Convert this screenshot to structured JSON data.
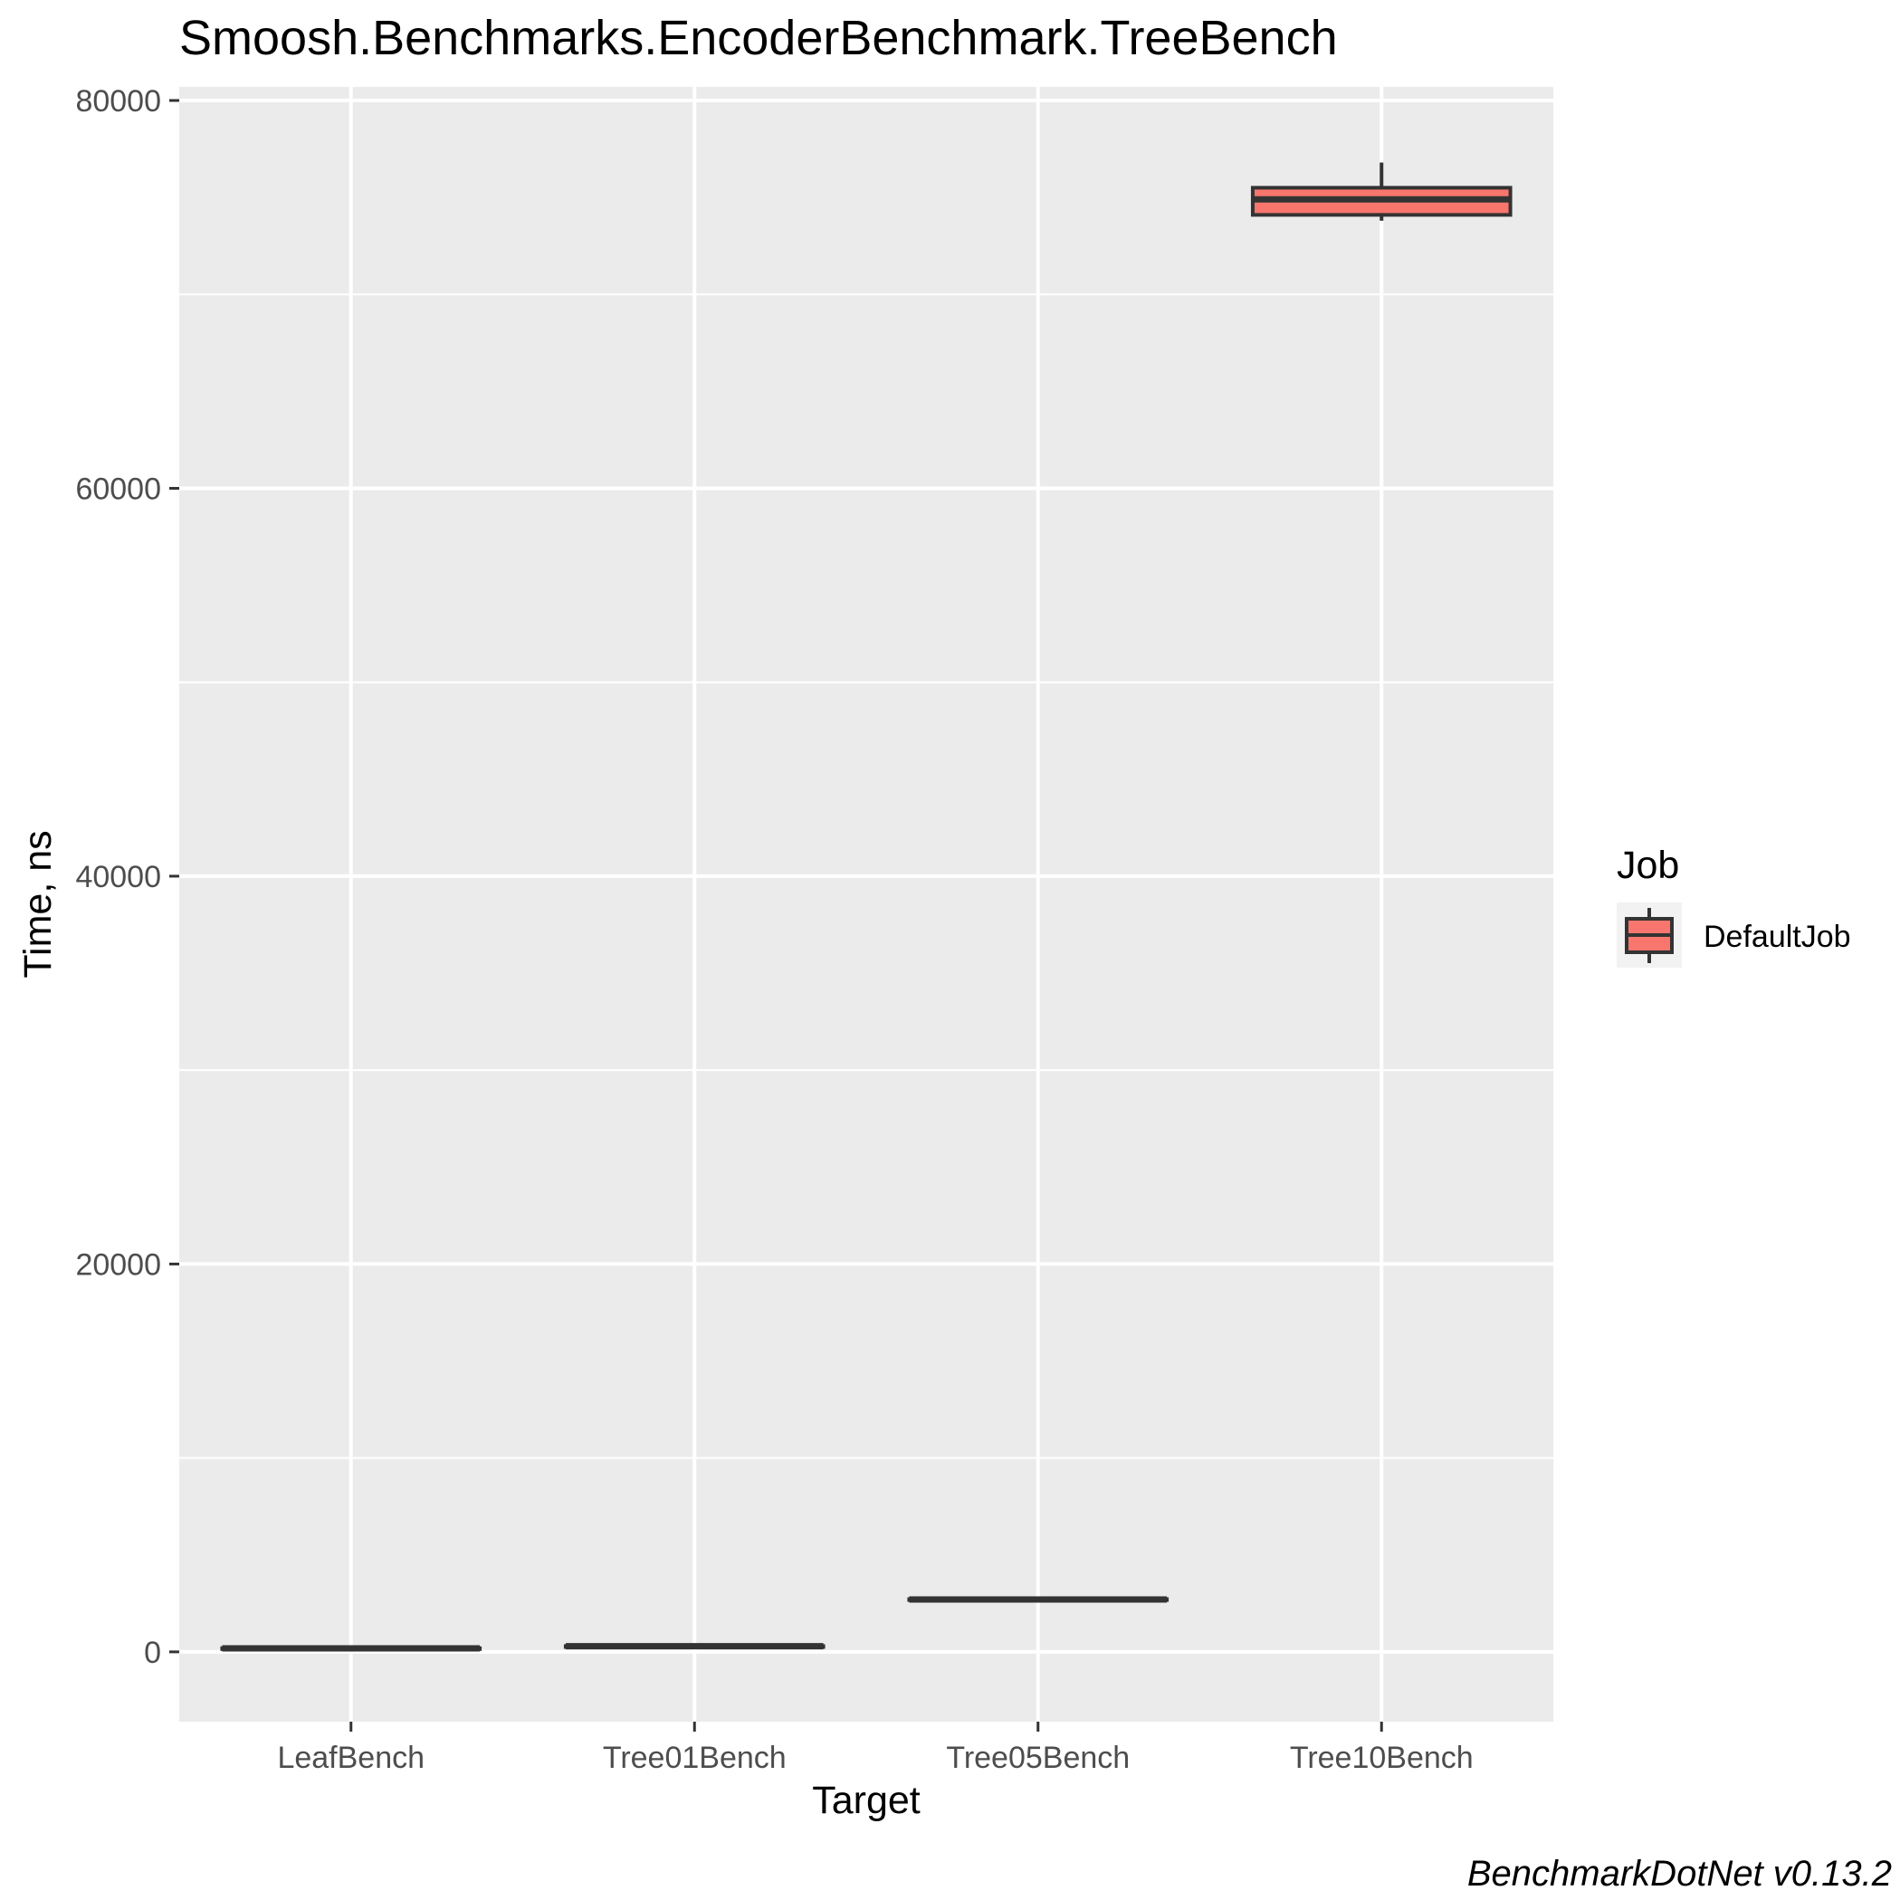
{
  "chart_data": {
    "type": "box",
    "title": "Smoosh.Benchmarks.EncoderBenchmark.TreeBench",
    "xlabel": "Target",
    "ylabel": "Time, ns",
    "categories": [
      "LeafBench",
      "Tree01Bench",
      "Tree05Bench",
      "Tree10Bench"
    ],
    "y_ticks": [
      0,
      20000,
      40000,
      60000,
      80000
    ],
    "y_tick_labels": [
      "0",
      "20000",
      "40000",
      "60000",
      "80000"
    ],
    "ylim": [
      -3600,
      80700
    ],
    "grid": true,
    "series": [
      {
        "name": "DefaultJob",
        "color": "#F8766D",
        "boxes": [
          {
            "category": "LeafBench",
            "min": 150,
            "q1": 170,
            "median": 180,
            "q3": 190,
            "max": 210
          },
          {
            "category": "Tree01Bench",
            "min": 260,
            "q1": 280,
            "median": 290,
            "q3": 300,
            "max": 320
          },
          {
            "category": "Tree05Bench",
            "min": 2650,
            "q1": 2680,
            "median": 2700,
            "q3": 2720,
            "max": 2750
          },
          {
            "category": "Tree10Bench",
            "min": 73800,
            "q1": 74100,
            "median": 74900,
            "q3": 75500,
            "max": 76800
          }
        ]
      }
    ],
    "legend": {
      "title": "Job",
      "position": "right",
      "entries": [
        "DefaultJob"
      ]
    }
  },
  "caption": "BenchmarkDotNet v0.13.2"
}
